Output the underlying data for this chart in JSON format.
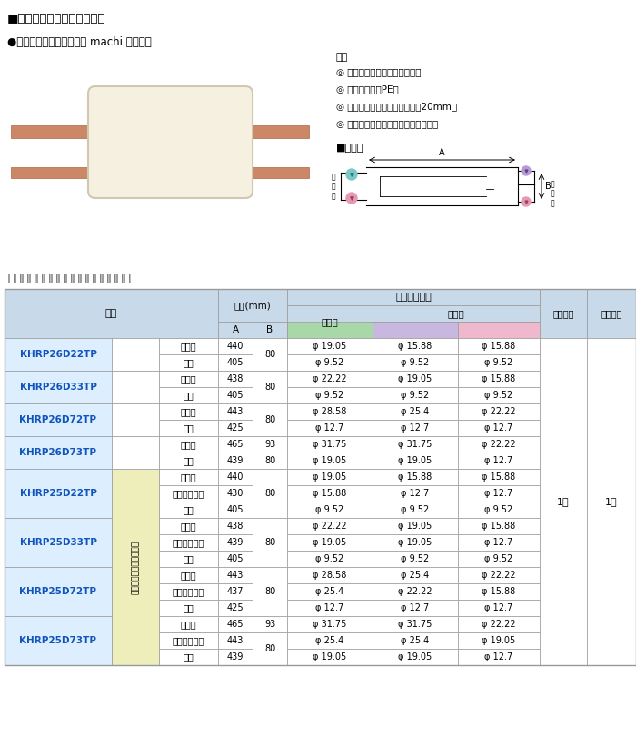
{
  "title_top": "■プレ加エジョイントの特長",
  "subtitle": "●業務用マルチエアコン・ machi マルチ用",
  "features_title": "特長",
  "features": [
    "◎ 保温工事・気密試験実施済み",
    "◎ 保温材の難營PE化",
    "◎ 国土交通省仕様対応（保温甄20mm）",
    "◎ すべて工場内で生産するため高品質"
  ],
  "dim_title": "■寸法図",
  "table_title": "プレ加エジョイント・継手組合せ一覧",
  "header_bg": "#c8daea",
  "green_bg": "#a8d8a8",
  "purple_bg": "#c8b8e0",
  "pink_bg": "#f0b8cc",
  "yellow_bg": "#eeeebb",
  "model_bg": "#ddeeff",
  "blue_text": "#1155bb",
  "border_color": "#999999",
  "rows": [
    {
      "model": "KHRP26D22TP",
      "group": null,
      "lines": [
        {
          "side": "ガス側",
          "A": "440",
          "B": "80",
          "in1": "φ 19.05",
          "out1": "φ 15.88",
          "out2": "φ 15.88"
        },
        {
          "side": "液側",
          "A": "405",
          "B": "",
          "in1": "φ 9.52",
          "out1": "φ 9.52",
          "out2": "φ 9.52"
        }
      ]
    },
    {
      "model": "KHRP26D33TP",
      "group": null,
      "lines": [
        {
          "side": "ガス側",
          "A": "438",
          "B": "80",
          "in1": "φ 22.22",
          "out1": "φ 19.05",
          "out2": "φ 15.88"
        },
        {
          "side": "液側",
          "A": "405",
          "B": "",
          "in1": "φ 9.52",
          "out1": "φ 9.52",
          "out2": "φ 9.52"
        }
      ]
    },
    {
      "model": "KHRP26D72TP",
      "group": null,
      "lines": [
        {
          "side": "ガス側",
          "A": "443",
          "B": "80",
          "in1": "φ 28.58",
          "out1": "φ 25.4",
          "out2": "φ 22.22"
        },
        {
          "side": "液側",
          "A": "425",
          "B": "",
          "in1": "φ 12.7",
          "out1": "φ 12.7",
          "out2": "φ 12.7"
        }
      ]
    },
    {
      "model": "KHRP26D73TP",
      "group": null,
      "lines": [
        {
          "side": "ガス側",
          "A": "465",
          "B": "93",
          "in1": "φ 31.75",
          "out1": "φ 31.75",
          "out2": "φ 22.22"
        },
        {
          "side": "液側",
          "A": "439",
          "B": "80",
          "in1": "φ 19.05",
          "out1": "φ 19.05",
          "out2": "φ 12.7"
        }
      ]
    },
    {
      "model": "KHRP25D22TP",
      "group": "冷房同時運転システム用",
      "lines": [
        {
          "side": "ガス側",
          "A": "440",
          "B": "80",
          "in1": "φ 19.05",
          "out1": "φ 15.88",
          "out2": "φ 15.88"
        },
        {
          "side": "高低圧ガス側",
          "A": "430",
          "B": "",
          "in1": "φ 15.88",
          "out1": "φ 12.7",
          "out2": "φ 12.7"
        },
        {
          "side": "液側",
          "A": "405",
          "B": "",
          "in1": "φ 9.52",
          "out1": "φ 9.52",
          "out2": "φ 9.52"
        }
      ]
    },
    {
      "model": "KHRP25D33TP",
      "group": "冷房同時運転システム用",
      "lines": [
        {
          "side": "ガス側",
          "A": "438",
          "B": "80",
          "in1": "φ 22.22",
          "out1": "φ 19.05",
          "out2": "φ 15.88"
        },
        {
          "side": "高低圧ガス側",
          "A": "439",
          "B": "",
          "in1": "φ 19.05",
          "out1": "φ 19.05",
          "out2": "φ 12.7"
        },
        {
          "side": "液側",
          "A": "405",
          "B": "",
          "in1": "φ 9.52",
          "out1": "φ 9.52",
          "out2": "φ 9.52"
        }
      ]
    },
    {
      "model": "KHRP25D72TP",
      "group": "冷房同時運転システム用",
      "lines": [
        {
          "side": "ガス側",
          "A": "443",
          "B": "80",
          "in1": "φ 28.58",
          "out1": "φ 25.4",
          "out2": "φ 22.22"
        },
        {
          "side": "高低圧ガス側",
          "A": "437",
          "B": "",
          "in1": "φ 25.4",
          "out1": "φ 22.22",
          "out2": "φ 15.88"
        },
        {
          "side": "液側",
          "A": "425",
          "B": "",
          "in1": "φ 12.7",
          "out1": "φ 12.7",
          "out2": "φ 12.7"
        }
      ]
    },
    {
      "model": "KHRP25D73TP",
      "group": "冷房同時運転システム用",
      "lines": [
        {
          "side": "ガス側",
          "A": "465",
          "B": "93",
          "in1": "φ 31.75",
          "out1": "φ 31.75",
          "out2": "φ 22.22"
        },
        {
          "side": "高低圧ガス側",
          "A": "443",
          "B": "80",
          "in1": "φ 25.4",
          "out1": "φ 25.4",
          "out2": "φ 19.05"
        },
        {
          "side": "液側",
          "A": "439",
          "B": "",
          "in1": "φ 19.05",
          "out1": "φ 19.05",
          "out2": "φ 12.7"
        }
      ]
    }
  ]
}
